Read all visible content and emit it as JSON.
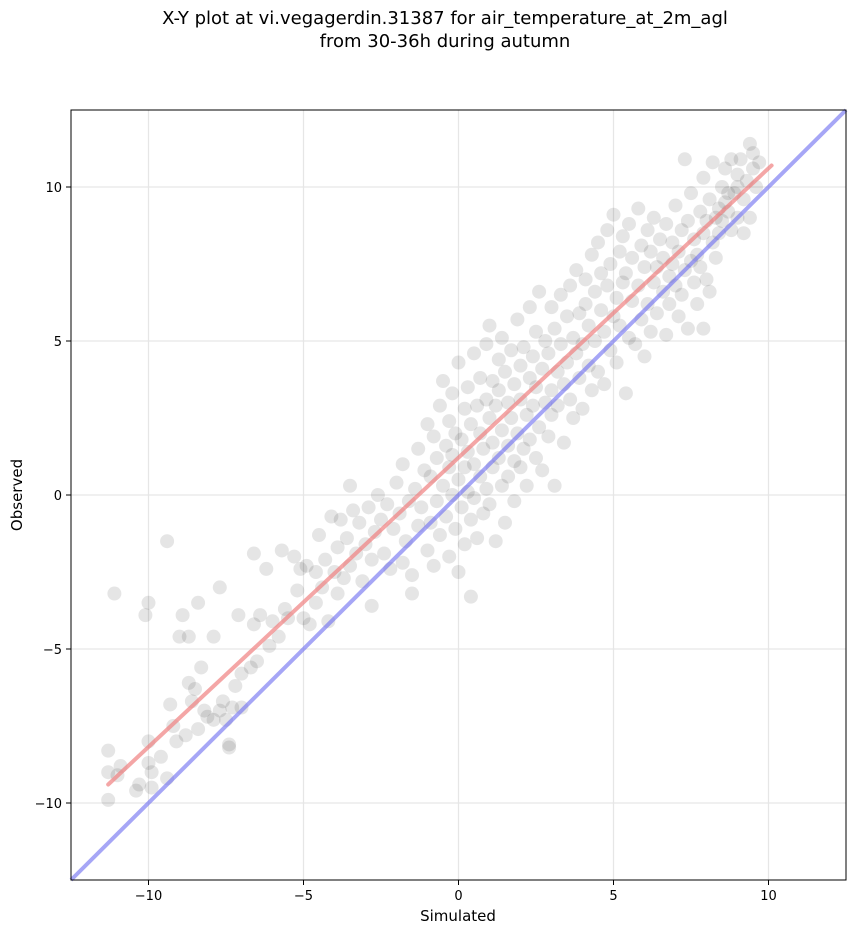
{
  "title_line1": "X-Y plot at vi.vegagerdin.31387 for air_temperature_at_2m_agl",
  "title_line2": "from 30-36h during autumn",
  "chart_data": {
    "type": "scatter",
    "title": "X-Y plot at vi.vegagerdin.31387 for air_temperature_at_2m_agl from 30-36h during autumn",
    "xlabel": "Simulated",
    "ylabel": "Observed",
    "xlim": [
      -12.5,
      12.5
    ],
    "ylim": [
      -12.5,
      12.5
    ],
    "xticks": [
      -10,
      -5,
      0,
      5,
      10
    ],
    "yticks": [
      -10,
      -5,
      0,
      5,
      10
    ],
    "xtick_labels": [
      "−10",
      "−5",
      "0",
      "5",
      "10"
    ],
    "ytick_labels": [
      "−10",
      "−5",
      "0",
      "5",
      "10"
    ],
    "grid": true,
    "point_color": "#000000",
    "point_alpha": 0.1,
    "fit_line": {
      "color": "#f08080",
      "x": [
        -11.3,
        10.1
      ],
      "y": [
        -9.4,
        10.7
      ]
    },
    "identity_line": {
      "color": "#6a6af0",
      "x": [
        -12.5,
        12.5
      ],
      "y": [
        -12.5,
        12.5
      ]
    },
    "points": [
      [
        -11.3,
        -8.3
      ],
      [
        -11.3,
        -9.0
      ],
      [
        -11.3,
        -9.9
      ],
      [
        -11.1,
        -3.2
      ],
      [
        -11.0,
        -9.1
      ],
      [
        -10.9,
        -8.8
      ],
      [
        -10.4,
        -9.6
      ],
      [
        -10.3,
        -9.4
      ],
      [
        -10.1,
        -3.9
      ],
      [
        -10.0,
        -3.5
      ],
      [
        -10.0,
        -8.0
      ],
      [
        -10.0,
        -8.7
      ],
      [
        -9.9,
        -9.5
      ],
      [
        -9.9,
        -9.0
      ],
      [
        -9.6,
        -8.5
      ],
      [
        -9.4,
        -1.5
      ],
      [
        -9.4,
        -9.2
      ],
      [
        -9.3,
        -6.8
      ],
      [
        -9.2,
        -7.5
      ],
      [
        -9.1,
        -8.0
      ],
      [
        -9.0,
        -4.6
      ],
      [
        -8.9,
        -3.9
      ],
      [
        -8.8,
        -7.8
      ],
      [
        -8.7,
        -4.6
      ],
      [
        -8.7,
        -6.1
      ],
      [
        -8.6,
        -6.7
      ],
      [
        -8.5,
        -6.3
      ],
      [
        -8.4,
        -3.5
      ],
      [
        -8.4,
        -7.6
      ],
      [
        -8.3,
        -5.6
      ],
      [
        -8.2,
        -7.0
      ],
      [
        -8.1,
        -7.2
      ],
      [
        -7.9,
        -7.3
      ],
      [
        -7.9,
        -4.6
      ],
      [
        -7.7,
        -3.0
      ],
      [
        -7.7,
        -7.0
      ],
      [
        -7.6,
        -6.7
      ],
      [
        -7.5,
        -7.3
      ],
      [
        -7.4,
        -8.1
      ],
      [
        -7.4,
        -8.2
      ],
      [
        -7.3,
        -6.9
      ],
      [
        -7.2,
        -6.2
      ],
      [
        -7.1,
        -3.9
      ],
      [
        -7.0,
        -5.8
      ],
      [
        -7.0,
        -6.9
      ],
      [
        -6.7,
        -5.6
      ],
      [
        -6.6,
        -1.9
      ],
      [
        -6.6,
        -4.2
      ],
      [
        -6.5,
        -5.4
      ],
      [
        -6.4,
        -3.9
      ],
      [
        -6.2,
        -2.4
      ],
      [
        -6.1,
        -4.9
      ],
      [
        -6.0,
        -4.1
      ],
      [
        -5.8,
        -4.6
      ],
      [
        -5.7,
        -1.8
      ],
      [
        -5.6,
        -3.7
      ],
      [
        -5.5,
        -4.0
      ],
      [
        -5.3,
        -2.0
      ],
      [
        -5.2,
        -3.1
      ],
      [
        -5.1,
        -2.4
      ],
      [
        -5.0,
        -4.0
      ],
      [
        -4.9,
        -2.3
      ],
      [
        -4.8,
        -4.2
      ],
      [
        -4.6,
        -2.5
      ],
      [
        -4.6,
        -3.5
      ],
      [
        -4.5,
        -1.3
      ],
      [
        -4.4,
        -3.0
      ],
      [
        -4.3,
        -2.1
      ],
      [
        -4.2,
        -4.1
      ],
      [
        -4.1,
        -0.7
      ],
      [
        -4.0,
        -2.5
      ],
      [
        -3.9,
        -1.7
      ],
      [
        -3.9,
        -3.2
      ],
      [
        -3.8,
        -0.8
      ],
      [
        -3.7,
        -2.7
      ],
      [
        -3.6,
        -1.4
      ],
      [
        -3.5,
        -2.3
      ],
      [
        -3.5,
        0.3
      ],
      [
        -3.4,
        -0.5
      ],
      [
        -3.3,
        -1.9
      ],
      [
        -3.2,
        -0.9
      ],
      [
        -3.1,
        -2.8
      ],
      [
        -3.0,
        -1.6
      ],
      [
        -2.9,
        -0.4
      ],
      [
        -2.8,
        -2.1
      ],
      [
        -2.8,
        -3.6
      ],
      [
        -2.7,
        -1.2
      ],
      [
        -2.6,
        0.0
      ],
      [
        -2.5,
        -0.8
      ],
      [
        -2.4,
        -1.9
      ],
      [
        -2.3,
        -0.3
      ],
      [
        -2.2,
        -2.4
      ],
      [
        -2.1,
        -1.1
      ],
      [
        -2.0,
        0.4
      ],
      [
        -1.9,
        -0.6
      ],
      [
        -1.8,
        -2.2
      ],
      [
        -1.8,
        1.0
      ],
      [
        -1.7,
        -1.5
      ],
      [
        -1.6,
        -0.2
      ],
      [
        -1.5,
        -3.2
      ],
      [
        -1.5,
        -2.6
      ],
      [
        -1.4,
        0.2
      ],
      [
        -1.3,
        1.5
      ],
      [
        -1.3,
        -1.0
      ],
      [
        -1.2,
        -0.4
      ],
      [
        -1.1,
        0.8
      ],
      [
        -1.0,
        -1.8
      ],
      [
        -1.0,
        2.3
      ],
      [
        -0.9,
        -0.9
      ],
      [
        -0.9,
        0.6
      ],
      [
        -0.8,
        1.9
      ],
      [
        -0.8,
        -2.3
      ],
      [
        -0.7,
        -0.2
      ],
      [
        -0.7,
        1.2
      ],
      [
        -0.6,
        2.9
      ],
      [
        -0.6,
        -1.3
      ],
      [
        -0.5,
        0.3
      ],
      [
        -0.5,
        3.7
      ],
      [
        -0.4,
        1.6
      ],
      [
        -0.4,
        -0.7
      ],
      [
        -0.3,
        0.9
      ],
      [
        -0.3,
        2.4
      ],
      [
        -0.3,
        -2.0
      ],
      [
        -0.2,
        3.3
      ],
      [
        -0.2,
        0.0
      ],
      [
        -0.2,
        1.3
      ],
      [
        -0.1,
        -1.1
      ],
      [
        -0.1,
        2.0
      ],
      [
        0.0,
        0.5
      ],
      [
        0.0,
        4.3
      ],
      [
        0.0,
        -2.5
      ],
      [
        0.1,
        1.8
      ],
      [
        0.1,
        -0.4
      ],
      [
        0.2,
        2.8
      ],
      [
        0.2,
        0.9
      ],
      [
        0.2,
        -1.6
      ],
      [
        0.3,
        3.5
      ],
      [
        0.3,
        0.1
      ],
      [
        0.3,
        1.4
      ],
      [
        0.4,
        -0.8
      ],
      [
        0.4,
        2.3
      ],
      [
        0.4,
        -3.3
      ],
      [
        0.5,
        4.6
      ],
      [
        0.5,
        1.0
      ],
      [
        0.5,
        -0.1
      ],
      [
        0.6,
        2.9
      ],
      [
        0.6,
        -1.4
      ],
      [
        0.7,
        3.8
      ],
      [
        0.7,
        0.6
      ],
      [
        0.7,
        2.0
      ],
      [
        0.8,
        -0.6
      ],
      [
        0.8,
        1.5
      ],
      [
        0.9,
        4.9
      ],
      [
        0.9,
        3.1
      ],
      [
        0.9,
        0.2
      ],
      [
        1.0,
        2.5
      ],
      [
        1.0,
        -0.3
      ],
      [
        1.0,
        5.5
      ],
      [
        1.1,
        1.7
      ],
      [
        1.1,
        3.7
      ],
      [
        1.1,
        0.9
      ],
      [
        1.2,
        -1.5
      ],
      [
        1.2,
        2.9
      ],
      [
        1.3,
        4.4
      ],
      [
        1.3,
        1.2
      ],
      [
        1.3,
        3.4
      ],
      [
        1.4,
        0.3
      ],
      [
        1.4,
        5.1
      ],
      [
        1.4,
        2.1
      ],
      [
        1.5,
        -0.9
      ],
      [
        1.5,
        4.0
      ],
      [
        1.6,
        1.6
      ],
      [
        1.6,
        3.0
      ],
      [
        1.6,
        0.6
      ],
      [
        1.7,
        4.7
      ],
      [
        1.7,
        2.5
      ],
      [
        1.8,
        1.1
      ],
      [
        1.8,
        3.6
      ],
      [
        1.8,
        -0.2
      ],
      [
        1.9,
        5.7
      ],
      [
        1.9,
        2.0
      ],
      [
        2.0,
        4.2
      ],
      [
        2.0,
        0.9
      ],
      [
        2.0,
        3.1
      ],
      [
        2.1,
        1.5
      ],
      [
        2.1,
        4.8
      ],
      [
        2.2,
        2.6
      ],
      [
        2.2,
        0.3
      ],
      [
        2.3,
        3.8
      ],
      [
        2.3,
        6.1
      ],
      [
        2.3,
        1.8
      ],
      [
        2.4,
        4.5
      ],
      [
        2.4,
        2.9
      ],
      [
        2.5,
        1.2
      ],
      [
        2.5,
        5.3
      ],
      [
        2.5,
        3.5
      ],
      [
        2.6,
        2.2
      ],
      [
        2.6,
        6.6
      ],
      [
        2.7,
        4.1
      ],
      [
        2.7,
        0.8
      ],
      [
        2.8,
        3.0
      ],
      [
        2.8,
        5.0
      ],
      [
        2.9,
        1.9
      ],
      [
        2.9,
        4.6
      ],
      [
        3.0,
        3.4
      ],
      [
        3.0,
        6.1
      ],
      [
        3.0,
        2.6
      ],
      [
        3.1,
        0.3
      ],
      [
        3.1,
        5.4
      ],
      [
        3.2,
        4.0
      ],
      [
        3.2,
        2.9
      ],
      [
        3.3,
        6.5
      ],
      [
        3.3,
        4.9
      ],
      [
        3.4,
        3.6
      ],
      [
        3.4,
        1.7
      ],
      [
        3.5,
        5.8
      ],
      [
        3.5,
        4.3
      ],
      [
        3.6,
        3.1
      ],
      [
        3.6,
        6.8
      ],
      [
        3.7,
        5.1
      ],
      [
        3.7,
        2.5
      ],
      [
        3.8,
        4.6
      ],
      [
        3.8,
        7.3
      ],
      [
        3.9,
        3.8
      ],
      [
        3.9,
        5.9
      ],
      [
        4.0,
        4.9
      ],
      [
        4.0,
        2.8
      ],
      [
        4.1,
        7.0
      ],
      [
        4.1,
        6.2
      ],
      [
        4.2,
        4.2
      ],
      [
        4.2,
        5.5
      ],
      [
        4.3,
        3.4
      ],
      [
        4.3,
        7.8
      ],
      [
        4.4,
        6.6
      ],
      [
        4.4,
        5.0
      ],
      [
        4.5,
        4.0
      ],
      [
        4.5,
        8.2
      ],
      [
        4.6,
        6.0
      ],
      [
        4.6,
        7.2
      ],
      [
        4.7,
        5.3
      ],
      [
        4.7,
        3.6
      ],
      [
        4.8,
        8.6
      ],
      [
        4.8,
        6.8
      ],
      [
        4.9,
        4.7
      ],
      [
        4.9,
        7.5
      ],
      [
        5.0,
        5.8
      ],
      [
        5.0,
        9.1
      ],
      [
        5.1,
        6.4
      ],
      [
        5.1,
        4.3
      ],
      [
        5.2,
        7.9
      ],
      [
        5.2,
        5.5
      ],
      [
        5.3,
        8.4
      ],
      [
        5.3,
        6.9
      ],
      [
        5.4,
        3.3
      ],
      [
        5.4,
        7.2
      ],
      [
        5.5,
        5.1
      ],
      [
        5.5,
        8.8
      ],
      [
        5.6,
        6.3
      ],
      [
        5.6,
        7.7
      ],
      [
        5.7,
        4.9
      ],
      [
        5.8,
        9.3
      ],
      [
        5.8,
        6.8
      ],
      [
        5.9,
        8.1
      ],
      [
        5.9,
        5.7
      ],
      [
        6.0,
        7.4
      ],
      [
        6.0,
        4.5
      ],
      [
        6.1,
        8.6
      ],
      [
        6.1,
        6.2
      ],
      [
        6.2,
        7.9
      ],
      [
        6.2,
        5.3
      ],
      [
        6.3,
        9.0
      ],
      [
        6.3,
        6.9
      ],
      [
        6.4,
        7.4
      ],
      [
        6.4,
        5.9
      ],
      [
        6.5,
        8.3
      ],
      [
        6.6,
        6.6
      ],
      [
        6.6,
        7.7
      ],
      [
        6.7,
        5.2
      ],
      [
        6.7,
        8.8
      ],
      [
        6.8,
        7.1
      ],
      [
        6.8,
        6.2
      ],
      [
        6.9,
        8.2
      ],
      [
        6.9,
        7.5
      ],
      [
        7.0,
        6.8
      ],
      [
        7.0,
        9.4
      ],
      [
        7.1,
        5.8
      ],
      [
        7.1,
        7.9
      ],
      [
        7.2,
        8.6
      ],
      [
        7.2,
        6.5
      ],
      [
        7.3,
        10.9
      ],
      [
        7.3,
        7.3
      ],
      [
        7.4,
        8.9
      ],
      [
        7.4,
        5.4
      ],
      [
        7.5,
        7.6
      ],
      [
        7.5,
        9.8
      ],
      [
        7.6,
        6.9
      ],
      [
        7.6,
        8.3
      ],
      [
        7.7,
        7.8
      ],
      [
        7.7,
        6.2
      ],
      [
        7.8,
        9.2
      ],
      [
        7.8,
        7.4
      ],
      [
        7.9,
        8.5
      ],
      [
        7.9,
        10.3
      ],
      [
        8.0,
        7.0
      ],
      [
        8.0,
        8.9
      ],
      [
        8.1,
        6.6
      ],
      [
        8.1,
        9.6
      ],
      [
        8.2,
        8.2
      ],
      [
        8.2,
        10.8
      ],
      [
        8.3,
        7.7
      ],
      [
        8.3,
        9.0
      ],
      [
        8.4,
        8.5
      ],
      [
        8.5,
        10.0
      ],
      [
        8.5,
        8.9
      ],
      [
        8.6,
        9.5
      ],
      [
        8.6,
        10.6
      ],
      [
        8.7,
        9.2
      ],
      [
        8.8,
        10.9
      ],
      [
        8.8,
        8.6
      ],
      [
        8.9,
        9.8
      ],
      [
        9.0,
        10.4
      ],
      [
        9.0,
        9.0
      ],
      [
        9.1,
        10.9
      ],
      [
        9.2,
        9.6
      ],
      [
        9.2,
        8.5
      ],
      [
        9.3,
        10.2
      ],
      [
        9.4,
        11.4
      ],
      [
        9.4,
        9.0
      ],
      [
        9.5,
        10.6
      ],
      [
        9.5,
        11.1
      ],
      [
        9.6,
        10.0
      ],
      [
        9.7,
        10.8
      ],
      [
        9.0,
        10.0
      ],
      [
        8.7,
        9.8
      ],
      [
        8.4,
        9.3
      ],
      [
        7.9,
        5.4
      ]
    ]
  }
}
